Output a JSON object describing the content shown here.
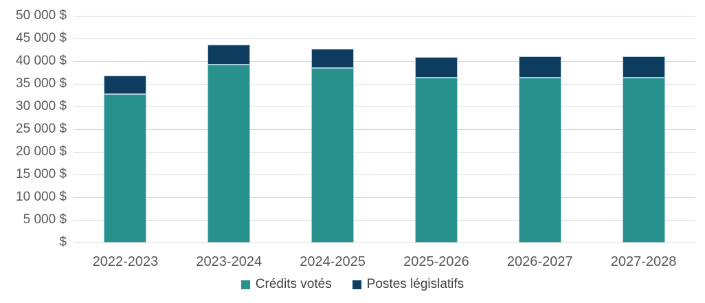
{
  "chart_data": {
    "type": "bar",
    "subtype": "stacked-column",
    "title": "",
    "categories": [
      "2022-2023",
      "2023-2024",
      "2024-2025",
      "2025-2026",
      "2026-2027",
      "2027-2028"
    ],
    "series": [
      {
        "name": "Crédits votés",
        "color": "#27928D",
        "values": [
          32700,
          39200,
          38500,
          36400,
          36400,
          36400
        ]
      },
      {
        "name": "Postes législatifs",
        "color": "#0D3C5F",
        "values": [
          4100,
          4400,
          4200,
          4500,
          4700,
          4700
        ]
      }
    ],
    "xlabel": "",
    "ylabel": "",
    "ylim": [
      0,
      50000
    ],
    "y_axis": {
      "min": 0,
      "max": 50000,
      "step": 5000,
      "unit": "$",
      "tick_labels": [
        "$",
        "5 000 $",
        "10 000 $",
        "15 000 $",
        "20 000 $",
        "25 000 $",
        "30 000 $",
        "35 000 $",
        "40 000 $",
        "45 000 $",
        "50 000 $"
      ]
    },
    "grid": true,
    "legend_position": "bottom"
  },
  "colors": {
    "background": "#FFFFFF",
    "gridline": "#D9D9D9",
    "axis_text": "#595959",
    "legend_text": "#404040",
    "bar_border": "#A9CCDB",
    "series_voted": "#27928D",
    "series_statutory": "#0D3C5F"
  },
  "legend": {
    "items": [
      {
        "label": "Crédits votés"
      },
      {
        "label": "Postes législatifs"
      }
    ]
  }
}
